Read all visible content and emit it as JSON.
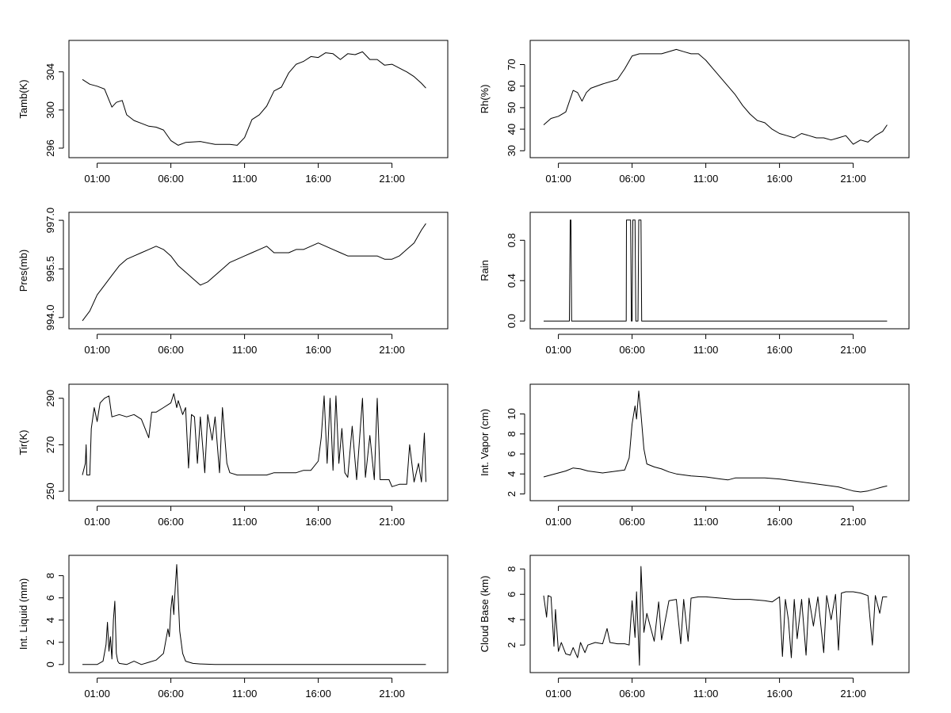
{
  "chart_data": [
    {
      "type": "line",
      "ylabel": "Tamb(K)",
      "ylim": [
        295.5,
        306.8
      ],
      "yticks": [
        296,
        300,
        304
      ],
      "xticks": [
        "01:00",
        "06:00",
        "11:00",
        "16:00",
        "21:00"
      ],
      "x_hours": [
        0,
        0.5,
        1,
        1.5,
        2,
        2.3,
        2.7,
        3,
        3.5,
        4,
        4.5,
        5,
        5.5,
        6,
        6.5,
        7,
        8,
        9,
        10,
        10.5,
        11,
        11.5,
        12,
        12.5,
        13,
        13.5,
        14,
        14.5,
        15,
        15.5,
        16,
        16.5,
        17,
        17.5,
        18,
        18.5,
        19,
        19.5,
        20,
        20.5,
        21,
        21.5,
        22,
        22.5,
        23,
        23.3
      ],
      "values": [
        303.2,
        302.7,
        302.5,
        302.2,
        300.3,
        300.8,
        301.0,
        299.5,
        298.9,
        298.6,
        298.3,
        298.2,
        297.9,
        296.8,
        296.3,
        296.6,
        296.7,
        296.4,
        296.4,
        296.3,
        297.1,
        299.0,
        299.5,
        300.4,
        302.0,
        302.4,
        303.9,
        304.8,
        305.1,
        305.6,
        305.5,
        306.0,
        305.9,
        305.3,
        305.9,
        305.8,
        306.1,
        305.3,
        305.3,
        304.7,
        304.8,
        304.4,
        304.0,
        303.5,
        302.8,
        302.3
      ]
    },
    {
      "type": "line",
      "ylabel": "Rh(%)",
      "ylim": [
        29,
        79
      ],
      "yticks": [
        30,
        40,
        50,
        60,
        70
      ],
      "xticks": [
        "01:00",
        "06:00",
        "11:00",
        "16:00",
        "21:00"
      ],
      "x_hours": [
        0,
        0.5,
        1,
        1.5,
        2,
        2.3,
        2.6,
        2.9,
        3.2,
        4,
        5,
        5.5,
        6,
        6.5,
        7,
        8,
        9,
        9.5,
        10,
        10.5,
        11,
        11.5,
        12,
        12.5,
        13,
        13.5,
        14,
        14.5,
        15,
        15.5,
        16,
        16.5,
        17,
        17.5,
        18,
        18.5,
        19,
        19.5,
        20,
        20.5,
        21,
        21.5,
        22,
        22.5,
        23,
        23.3
      ],
      "values": [
        42,
        45,
        46,
        48,
        58,
        57,
        53,
        57,
        59,
        61,
        63,
        68,
        74,
        75,
        75,
        75,
        77,
        76,
        75,
        75,
        72,
        68,
        64,
        60,
        56,
        51,
        47,
        44,
        43,
        40,
        38,
        37,
        36,
        38,
        37,
        36,
        36,
        35,
        36,
        37,
        33,
        35,
        34,
        37,
        39,
        42
      ]
    },
    {
      "type": "line",
      "ylabel": "Pres(mb)",
      "ylim": [
        993.8,
        997.1
      ],
      "yticks": [
        994.0,
        995.5,
        997.0
      ],
      "ytick_labels": [
        "994.0",
        "995.5",
        "997.0"
      ],
      "xticks": [
        "01:00",
        "06:00",
        "11:00",
        "16:00",
        "21:00"
      ],
      "x_hours": [
        0,
        0.5,
        1,
        1.5,
        2,
        2.5,
        3,
        3.5,
        4,
        4.5,
        5,
        5.5,
        6,
        6.5,
        7,
        7.5,
        8,
        8.5,
        9,
        9.5,
        10,
        10.5,
        11,
        11.5,
        12,
        12.5,
        13,
        13.5,
        14,
        14.5,
        15,
        15.5,
        16,
        16.5,
        17,
        17.5,
        18,
        18.5,
        19,
        19.5,
        20,
        20.5,
        21,
        21.5,
        22,
        22.5,
        23,
        23.3
      ],
      "values": [
        993.9,
        994.2,
        994.7,
        995.0,
        995.3,
        995.6,
        995.8,
        995.9,
        996.0,
        996.1,
        996.2,
        996.1,
        995.9,
        995.6,
        995.4,
        995.2,
        995.0,
        995.1,
        995.3,
        995.5,
        995.7,
        995.8,
        995.9,
        996.0,
        996.1,
        996.2,
        996.0,
        996.0,
        996.0,
        996.1,
        996.1,
        996.2,
        996.3,
        996.2,
        996.1,
        996.0,
        995.9,
        995.9,
        995.9,
        995.9,
        995.9,
        995.8,
        995.8,
        995.9,
        996.1,
        996.3,
        996.7,
        996.9
      ]
    },
    {
      "type": "line",
      "ylabel": "Rain",
      "ylim": [
        -0.03,
        1.03
      ],
      "yticks": [
        0.0,
        0.4,
        0.8
      ],
      "ytick_labels": [
        "0.0",
        "0.4",
        "0.8"
      ],
      "xticks": [
        "01:00",
        "06:00",
        "11:00",
        "16:00",
        "21:00"
      ],
      "x_hours": [
        0,
        1.75,
        1.8,
        1.85,
        1.9,
        5.6,
        5.62,
        5.9,
        5.95,
        6.0,
        6.05,
        6.2,
        6.25,
        6.4,
        6.45,
        6.6,
        6.65,
        24
      ],
      "values": [
        0,
        0,
        1,
        1,
        0,
        0,
        1,
        1,
        0,
        0,
        1,
        1,
        0,
        0,
        1,
        1,
        0,
        0
      ]
    },
    {
      "type": "line",
      "ylabel": "Tir(K)",
      "ylim": [
        248,
        294
      ],
      "yticks": [
        250,
        270,
        290
      ],
      "xticks": [
        "01:00",
        "06:00",
        "11:00",
        "16:00",
        "21:00"
      ],
      "x_hours": [
        0,
        0.2,
        0.25,
        0.3,
        0.5,
        0.6,
        0.8,
        1,
        1.2,
        1.5,
        1.8,
        2,
        2.5,
        3,
        3.5,
        4,
        4.5,
        4.7,
        5,
        5.5,
        6,
        6.2,
        6.4,
        6.5,
        6.8,
        7,
        7.2,
        7.4,
        7.6,
        7.8,
        8,
        8.3,
        8.5,
        8.8,
        9,
        9.3,
        9.5,
        9.8,
        10,
        10.5,
        11,
        11.5,
        12,
        12.5,
        13,
        13.5,
        14,
        14.5,
        15,
        15.5,
        16,
        16.2,
        16.4,
        16.6,
        16.8,
        17,
        17.2,
        17.4,
        17.6,
        17.8,
        18,
        18.3,
        18.6,
        19,
        19.2,
        19.5,
        19.8,
        20,
        20.2,
        20.5,
        20.8,
        21,
        21.5,
        22,
        22.2,
        22.5,
        22.8,
        23,
        23.2,
        23.3
      ],
      "values": [
        257,
        262,
        270,
        257,
        257,
        277,
        286,
        280,
        288,
        290,
        291,
        282,
        283,
        282,
        283,
        281,
        273,
        284,
        284,
        286,
        288,
        292,
        286,
        289,
        283,
        286,
        260,
        283,
        282,
        262,
        282,
        258,
        283,
        272,
        282,
        258,
        286,
        262,
        258,
        257,
        257,
        257,
        257,
        257,
        258,
        258,
        258,
        258,
        259,
        259,
        263,
        273,
        291,
        262,
        290,
        259,
        291,
        262,
        277,
        258,
        256,
        278,
        255,
        290,
        256,
        274,
        255,
        290,
        255,
        255,
        255,
        252,
        253,
        253,
        270,
        254,
        262,
        254,
        275,
        254
      ]
    },
    {
      "type": "line",
      "ylabel": "Int. Vapor (cm)",
      "ylim": [
        1.8,
        12.5
      ],
      "yticks": [
        2,
        4,
        6,
        8,
        10
      ],
      "xticks": [
        "01:00",
        "06:00",
        "11:00",
        "16:00",
        "21:00"
      ],
      "x_hours": [
        0,
        0.5,
        1,
        1.5,
        2,
        2.5,
        3,
        3.5,
        4,
        4.5,
        5,
        5.5,
        5.8,
        6,
        6.2,
        6.3,
        6.45,
        6.6,
        6.8,
        7,
        7.5,
        8,
        8.5,
        9,
        10,
        11,
        12,
        12.5,
        13,
        14,
        15,
        16,
        17,
        18,
        19,
        20,
        20.5,
        21,
        21.5,
        22,
        22.5,
        23,
        23.3
      ],
      "values": [
        3.7,
        3.9,
        4.1,
        4.3,
        4.6,
        4.5,
        4.3,
        4.2,
        4.1,
        4.2,
        4.3,
        4.4,
        5.6,
        9.0,
        10.8,
        9.5,
        12.3,
        10.0,
        6.5,
        5.0,
        4.7,
        4.5,
        4.2,
        4.0,
        3.8,
        3.7,
        3.5,
        3.4,
        3.6,
        3.6,
        3.6,
        3.5,
        3.3,
        3.1,
        2.9,
        2.7,
        2.5,
        2.3,
        2.2,
        2.3,
        2.5,
        2.7,
        2.8
      ]
    },
    {
      "type": "line",
      "ylabel": "Int. Liquid (mm)",
      "ylim": [
        -0.3,
        9.4
      ],
      "yticks": [
        0,
        2,
        4,
        6,
        8
      ],
      "xticks": [
        "01:00",
        "06:00",
        "11:00",
        "16:00",
        "21:00"
      ],
      "x_hours": [
        0,
        1,
        1.4,
        1.6,
        1.7,
        1.8,
        1.9,
        2.0,
        2.1,
        2.2,
        2.3,
        2.4,
        2.5,
        3,
        3.5,
        4,
        4.5,
        5,
        5.5,
        5.8,
        5.9,
        6.0,
        6.1,
        6.2,
        6.3,
        6.4,
        6.5,
        6.6,
        6.8,
        7,
        7.5,
        8,
        9,
        12,
        16,
        20,
        23.3
      ],
      "values": [
        0,
        0,
        0.3,
        1.8,
        3.8,
        1.2,
        2.5,
        0.5,
        4.0,
        5.7,
        1.0,
        0.3,
        0.1,
        0,
        0.3,
        0,
        0.2,
        0.4,
        1.0,
        3.2,
        2.5,
        5.0,
        6.2,
        4.5,
        7.0,
        9.0,
        6.0,
        3.0,
        1.0,
        0.3,
        0.1,
        0.05,
        0,
        0,
        0,
        0,
        0
      ]
    },
    {
      "type": "line",
      "ylabel": "Cloud Base (km)",
      "ylim": [
        0.2,
        8.7
      ],
      "yticks": [
        2,
        4,
        6,
        8
      ],
      "xticks": [
        "01:00",
        "06:00",
        "11:00",
        "16:00",
        "21:00"
      ],
      "x_hours": [
        0,
        0.2,
        0.3,
        0.5,
        0.7,
        0.8,
        1,
        1.2,
        1.4,
        1.5,
        1.8,
        2,
        2.3,
        2.5,
        2.8,
        3,
        3.5,
        4,
        4.3,
        4.5,
        5,
        5.5,
        5.8,
        6,
        6.2,
        6.3,
        6.5,
        6.6,
        6.8,
        7,
        7.5,
        7.8,
        8,
        8.5,
        9,
        9.3,
        9.5,
        9.8,
        10,
        10.5,
        11,
        12,
        13,
        14,
        15,
        15.5,
        16,
        16.2,
        16.4,
        16.6,
        16.8,
        17,
        17.2,
        17.5,
        17.8,
        18,
        18.3,
        18.6,
        19,
        19.2,
        19.5,
        19.8,
        20,
        20.2,
        20.5,
        21,
        21.5,
        22,
        22.3,
        22.5,
        22.8,
        23,
        23.3
      ],
      "values": [
        5.9,
        4.2,
        5.9,
        5.8,
        1.9,
        4.8,
        1.5,
        2.2,
        1.6,
        1.3,
        1.2,
        1.8,
        1.0,
        2.2,
        1.4,
        2.0,
        2.2,
        2.1,
        3.3,
        2.2,
        2.1,
        2.1,
        2.0,
        5.5,
        2.6,
        6.2,
        0.4,
        8.2,
        3.0,
        4.5,
        2.3,
        5.4,
        2.4,
        5.5,
        5.6,
        2.1,
        5.6,
        2.3,
        5.7,
        5.8,
        5.8,
        5.7,
        5.6,
        5.6,
        5.5,
        5.4,
        5.8,
        1.1,
        5.6,
        4.0,
        1.0,
        5.6,
        2.5,
        5.6,
        1.2,
        5.7,
        3.5,
        5.8,
        1.4,
        5.9,
        4.0,
        6.0,
        1.6,
        6.1,
        6.2,
        6.2,
        6.1,
        5.9,
        2.0,
        5.9,
        4.5,
        5.8,
        5.8
      ]
    }
  ]
}
